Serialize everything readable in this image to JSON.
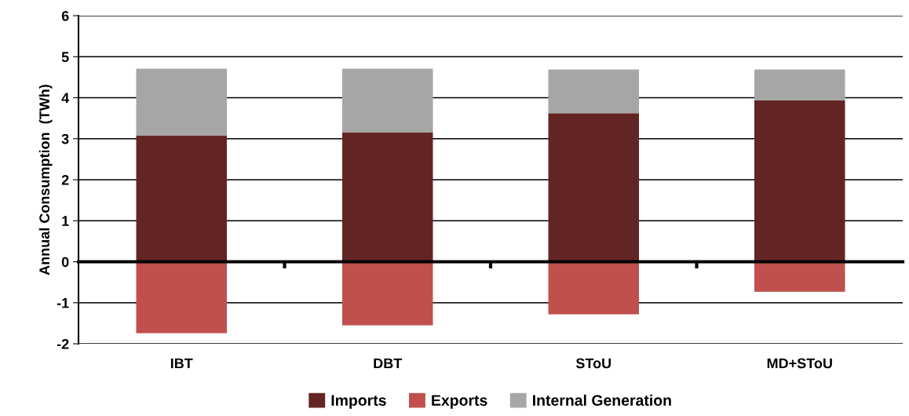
{
  "chart_data": {
    "type": "bar",
    "stacked": true,
    "ylabel": "Annual Consumption  (TWh)",
    "categories": [
      "IBT",
      "DBT",
      "SToU",
      "MD+SToU"
    ],
    "series": [
      {
        "name": "Imports",
        "color": "#632523",
        "values": [
          3.08,
          3.16,
          3.62,
          3.94
        ]
      },
      {
        "name": "Exports",
        "color": "#c0504d",
        "values": [
          -1.74,
          -1.55,
          -1.28,
          -0.73
        ]
      },
      {
        "name": "Internal Generation",
        "color": "#a6a6a6",
        "values": [
          1.63,
          1.55,
          1.07,
          0.75
        ]
      }
    ],
    "ylim": [
      -2,
      6
    ],
    "yticks": [
      -2,
      -1,
      0,
      1,
      2,
      3,
      4,
      5,
      6
    ],
    "grid": "y",
    "legend": "bottom"
  }
}
